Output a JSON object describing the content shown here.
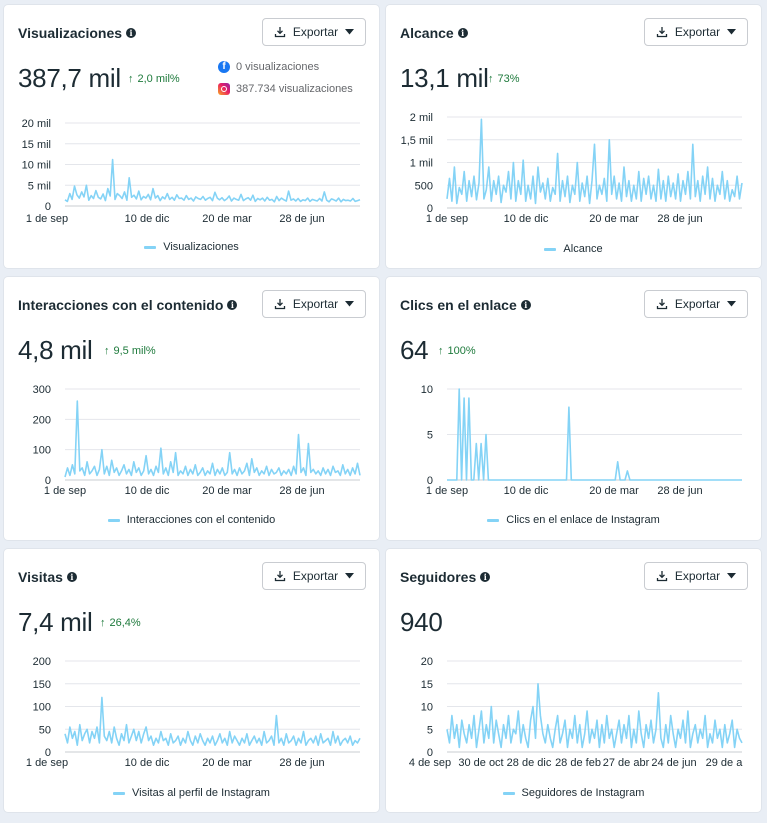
{
  "accent_color": "#84d3f6",
  "positive_color": "#1e7a3c",
  "export_label": "Exportar",
  "cards": [
    {
      "title": "Visualizaciones",
      "value": "387,7 mil",
      "delta": "2,0 mil%",
      "sources": [
        {
          "icon": "facebook-icon",
          "text": "0 visualizaciones"
        },
        {
          "icon": "instagram-icon",
          "text": "387.734 visualizaciones"
        }
      ],
      "legend": "Visualizaciones",
      "chart_data": {
        "type": "line",
        "title": "",
        "xlabel": "",
        "ylabel": "",
        "y_ticks": [
          "0",
          "5 mil",
          "10 mil",
          "15 mil",
          "20 mil"
        ],
        "ylim": [
          0,
          20000
        ],
        "x_tick_labels": [
          "1 de sep",
          "10 de dic",
          "20 de mar",
          "28 de jun"
        ],
        "series": [
          {
            "name": "Visualizaciones",
            "values": [
              1500,
              1100,
              3000,
              1600,
              4800,
              2700,
              1900,
              3400,
              2200,
              5000,
              1400,
              2500,
              1800,
              3700,
              2100,
              1700,
              2900,
              1300,
              4200,
              2400,
              11200,
              1600,
              3000,
              2500,
              1800,
              3400,
              1400,
              6800,
              2100,
              2600,
              1700,
              3600,
              1500,
              2300,
              1900,
              2800,
              1500,
              4200,
              1900,
              2500,
              1300,
              2200,
              1700,
              3000,
              1600,
              2100,
              1400,
              2700,
              1800,
              1900,
              1400,
              2500,
              1600,
              1900,
              1200,
              2200,
              1800,
              1600,
              2300,
              1400,
              1800,
              2100,
              1300,
              3300,
              1900,
              1500,
              2000,
              1300,
              1700,
              2400,
              1200,
              1900,
              1600,
              1400,
              2800,
              1300,
              1700,
              2000,
              1400,
              2600,
              1100,
              1800,
              1500,
              1900,
              1200,
              2100,
              1400,
              1600,
              1000,
              2300,
              1300,
              1900,
              1500,
              1200,
              3600,
              1400,
              1700,
              1200,
              1800,
              1100,
              1500,
              1300,
              1900,
              1100,
              1600,
              1400,
              1200,
              1800,
              1200,
              3400,
              1400,
              1000,
              1700,
              1500,
              1200,
              1900,
              1000,
              1600,
              1300,
              1400,
              1200,
              1800,
              1100,
              1300,
              1500
            ]
          }
        ]
      }
    },
    {
      "title": "Alcance",
      "value": "13,1 mil",
      "delta": "73%",
      "sources": [],
      "legend": "Alcance",
      "chart_data": {
        "type": "line",
        "title": "",
        "xlabel": "",
        "ylabel": "",
        "y_ticks": [
          "0",
          "500",
          "1 mil",
          "1,5 mil",
          "2 mil"
        ],
        "ylim": [
          0,
          2000
        ],
        "x_tick_labels": [
          "1 de sep",
          "10 de dic",
          "20 de mar",
          "28 de jun"
        ],
        "series": [
          {
            "name": "Alcance",
            "values": [
              200,
              650,
              150,
              900,
              100,
              450,
              300,
              800,
              150,
              600,
              250,
              700,
              180,
              550,
              1950,
              200,
              400,
              900,
              150,
              600,
              300,
              700,
              120,
              500,
              350,
              800,
              200,
              1000,
              150,
              600,
              300,
              1050,
              150,
              500,
              200,
              700,
              100,
              900,
              350,
              550,
              200,
              650,
              150,
              450,
              300,
              1200,
              150,
              600,
              250,
              700,
              120,
              500,
              300,
              1000,
              150,
              550,
              250,
              700,
              100,
              600,
              1400,
              200,
              500,
              300,
              650,
              150,
              1500,
              300,
              700,
              200,
              550,
              150,
              900,
              250,
              600,
              150,
              500,
              200,
              800,
              150,
              650,
              300,
              700,
              200,
              500,
              150,
              850,
              200,
              600,
              150,
              700,
              250,
              550,
              200,
              750,
              150,
              600,
              300,
              800,
              200,
              1400,
              250,
              600,
              150,
              700,
              300,
              900,
              200,
              650,
              150,
              500,
              300,
              800,
              200,
              600,
              150,
              400,
              250,
              700,
              200,
              550
            ]
          }
        ]
      }
    },
    {
      "title": "Interacciones con el contenido",
      "value": "4,8 mil",
      "delta": "9,5 mil%",
      "sources": [],
      "legend": "Interacciones con el contenido",
      "chart_data": {
        "type": "line",
        "title": "",
        "xlabel": "",
        "ylabel": "",
        "y_ticks": [
          "0",
          "100",
          "200",
          "300"
        ],
        "ylim": [
          0,
          300
        ],
        "x_tick_labels": [
          "1 de sep",
          "10 de dic",
          "20 de mar",
          "28 de jun"
        ],
        "series": [
          {
            "name": "Interacciones con el contenido",
            "values": [
              10,
              40,
              15,
              50,
              20,
              260,
              30,
              40,
              15,
              60,
              20,
              30,
              45,
              15,
              35,
              100,
              20,
              45,
              15,
              65,
              25,
              40,
              15,
              30,
              50,
              20,
              35,
              15,
              60,
              25,
              40,
              15,
              30,
              80,
              20,
              35,
              15,
              45,
              25,
              105,
              20,
              40,
              15,
              60,
              25,
              90,
              15,
              30,
              20,
              45,
              15,
              35,
              20,
              50,
              15,
              25,
              40,
              15,
              30,
              20,
              55,
              15,
              35,
              20,
              40,
              15,
              25,
              90,
              20,
              35,
              15,
              40,
              20,
              30,
              55,
              15,
              70,
              25,
              40,
              15,
              30,
              20,
              45,
              15,
              35,
              20,
              25,
              40,
              15,
              30,
              20,
              35,
              15,
              45,
              20,
              150,
              25,
              40,
              15,
              120,
              25,
              35,
              20,
              30,
              15,
              40,
              20,
              35,
              15,
              45,
              25,
              30,
              15,
              50,
              20,
              35,
              15,
              40,
              20,
              55,
              15
            ]
          }
        ]
      }
    },
    {
      "title": "Clics en el enlace",
      "value": "64",
      "delta": "100%",
      "sources": [],
      "legend": "Clics en el enlace de Instagram",
      "chart_data": {
        "type": "line",
        "title": "",
        "xlabel": "",
        "ylabel": "",
        "y_ticks": [
          "0",
          "5",
          "10"
        ],
        "ylim": [
          0,
          10
        ],
        "x_tick_labels": [
          "1 de sep",
          "10 de dic",
          "20 de mar",
          "28 de jun"
        ],
        "series": [
          {
            "name": "Clics en el enlace de Instagram",
            "values": [
              0,
              0,
              0,
              0,
              0,
              10,
              0,
              9,
              0,
              9,
              0,
              0,
              4,
              0,
              4,
              0,
              5,
              0,
              0,
              0,
              0,
              0,
              0,
              0,
              0,
              0,
              0,
              0,
              0,
              0,
              0,
              0,
              0,
              0,
              0,
              0,
              0,
              0,
              0,
              0,
              0,
              0,
              0,
              0,
              0,
              0,
              0,
              0,
              0,
              0,
              8,
              0,
              0,
              0,
              0,
              0,
              0,
              0,
              0,
              0,
              0,
              0,
              0,
              0,
              0,
              0,
              0,
              0,
              0,
              0,
              2,
              0,
              0,
              0,
              1,
              0,
              0,
              0,
              0,
              0,
              0,
              0,
              0,
              0,
              0,
              0,
              0,
              0,
              0,
              0,
              0,
              0,
              0,
              0,
              0,
              0,
              0,
              0,
              0,
              0,
              0,
              0,
              0,
              0,
              0,
              0,
              0,
              0,
              0,
              0,
              0,
              0,
              0,
              0,
              0,
              0,
              0,
              0,
              0,
              0,
              0,
              0
            ]
          }
        ]
      }
    },
    {
      "title": "Visitas",
      "value": "7,4 mil",
      "delta": "26,4%",
      "sources": [],
      "legend": "Visitas al perfil de Instagram",
      "chart_data": {
        "type": "line",
        "title": "",
        "xlabel": "",
        "ylabel": "",
        "y_ticks": [
          "0",
          "50",
          "100",
          "150",
          "200"
        ],
        "ylim": [
          0,
          200
        ],
        "x_tick_labels": [
          "1 de sep",
          "10 de dic",
          "20 de mar",
          "28 de jun"
        ],
        "series": [
          {
            "name": "Visitas al perfil de Instagram",
            "values": [
              40,
              20,
              55,
              30,
              45,
              15,
              60,
              25,
              40,
              50,
              20,
              45,
              30,
              55,
              20,
              120,
              35,
              25,
              45,
              20,
              55,
              30,
              15,
              40,
              25,
              60,
              20,
              35,
              50,
              25,
              45,
              20,
              40,
              55,
              25,
              35,
              15,
              30,
              20,
              45,
              25,
              30,
              15,
              40,
              20,
              25,
              35,
              15,
              30,
              20,
              45,
              25,
              15,
              35,
              20,
              40,
              25,
              15,
              30,
              20,
              35,
              15,
              25,
              40,
              20,
              30,
              15,
              45,
              20,
              35,
              25,
              15,
              30,
              20,
              40,
              15,
              25,
              35,
              20,
              30,
              15,
              45,
              20,
              25,
              35,
              15,
              80,
              20,
              30,
              15,
              40,
              20,
              25,
              35,
              15,
              30,
              20,
              45,
              15,
              25,
              30,
              20,
              35,
              15,
              40,
              20,
              25,
              30,
              15,
              45,
              20,
              35,
              15,
              25,
              30,
              20,
              35,
              15,
              25,
              20,
              30
            ]
          }
        ]
      }
    },
    {
      "title": "Seguidores",
      "value": "940",
      "delta": "",
      "sources": [],
      "legend": "Seguidores de Instagram",
      "chart_data": {
        "type": "line",
        "title": "",
        "xlabel": "",
        "ylabel": "",
        "y_ticks": [
          "0",
          "5",
          "10",
          "15",
          "20"
        ],
        "ylim": [
          0,
          20
        ],
        "x_tick_labels": [
          "4 de sep",
          "30 de oct",
          "28 de dic",
          "28 de feb",
          "27 de abr",
          "24 de jun",
          "29 de a"
        ],
        "series": [
          {
            "name": "Seguidores de Instagram",
            "values": [
              5,
              2,
              8,
              3,
              6,
              1,
              7,
              4,
              2,
              6,
              3,
              8,
              1,
              5,
              9,
              2,
              6,
              3,
              10,
              2,
              7,
              4,
              1,
              6,
              3,
              8,
              2,
              5,
              4,
              9,
              2,
              6,
              3,
              1,
              7,
              10,
              3,
              15,
              8,
              4,
              2,
              6,
              3,
              1,
              5,
              8,
              2,
              4,
              7,
              1,
              5,
              3,
              8,
              2,
              6,
              1,
              4,
              9,
              2,
              5,
              3,
              7,
              1,
              6,
              2,
              8,
              3,
              5,
              1,
              4,
              7,
              2,
              6,
              3,
              8,
              1,
              5,
              2,
              9,
              4,
              1,
              6,
              3,
              7,
              2,
              5,
              13,
              3,
              1,
              6,
              2,
              8,
              4,
              1,
              5,
              3,
              7,
              2,
              9,
              1,
              4,
              6,
              2,
              5,
              3,
              8,
              1,
              4,
              2,
              7,
              3,
              5,
              1,
              6,
              2,
              4,
              7,
              1,
              5,
              3,
              2
            ]
          }
        ]
      }
    }
  ]
}
